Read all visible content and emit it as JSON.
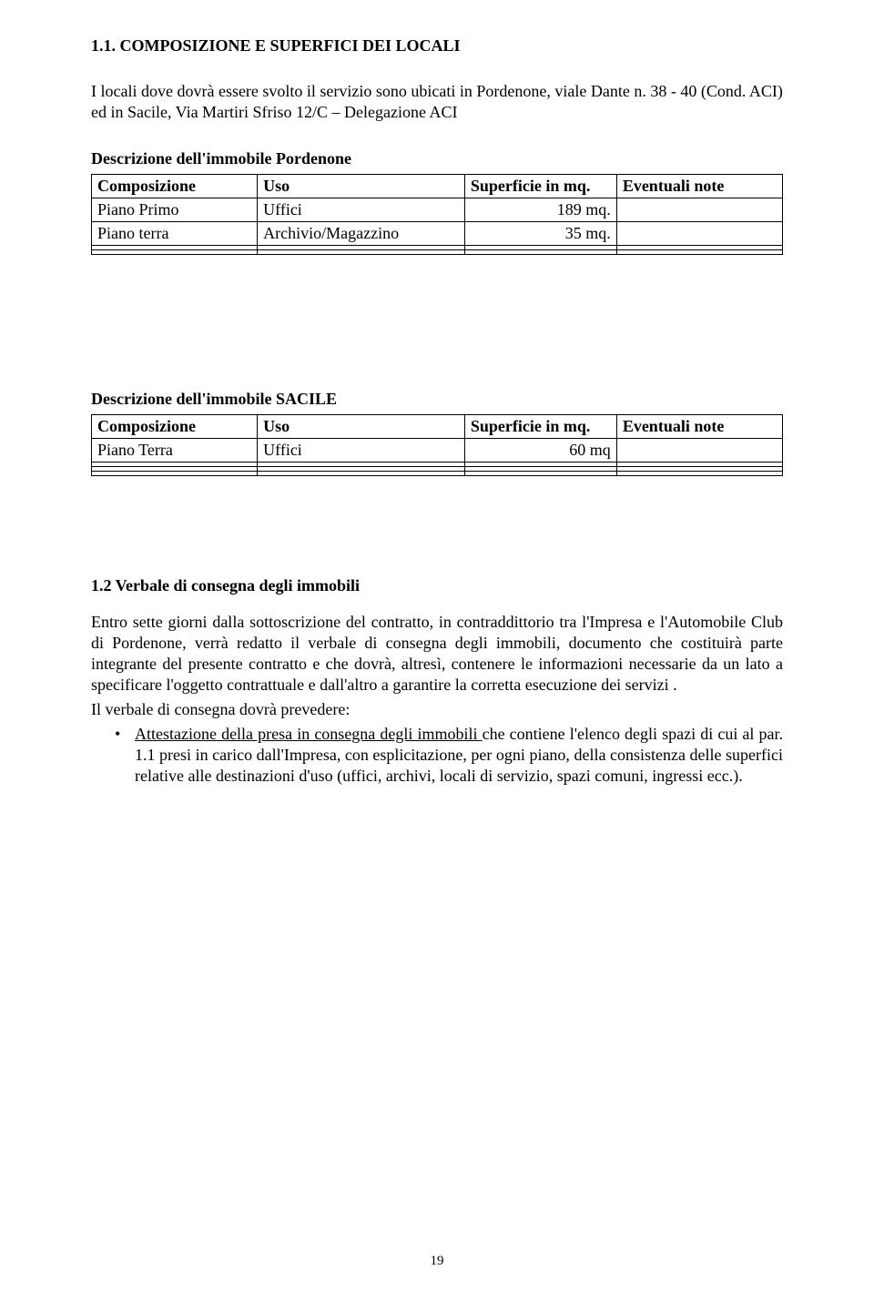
{
  "heading_1_1": "1.1. COMPOSIZIONE E SUPERFICI  DEI  LOCALI",
  "intro": "I locali dove dovrà essere svolto il servizio sono ubicati in  Pordenone, viale Dante n.  38 - 40 (Cond. ACI) ed in Sacile, Via Martiri Sfriso 12/C – Delegazione ACI",
  "table1": {
    "title": "Descrizione dell'immobile Pordenone",
    "headers": [
      "Composizione",
      "Uso",
      "Superficie  in mq.",
      "Eventuali note"
    ],
    "rows": [
      [
        "Piano Primo",
        "Uffici",
        "189 mq.",
        ""
      ],
      [
        "Piano terra",
        "Archivio/Magazzino",
        "35 mq.",
        ""
      ],
      [
        "",
        "",
        "",
        ""
      ],
      [
        "",
        "",
        "",
        ""
      ]
    ]
  },
  "table2": {
    "title": "Descrizione dell'immobile SACILE",
    "headers": [
      "Composizione",
      "Uso",
      "Superficie   in mq.",
      "Eventuali note"
    ],
    "rows": [
      [
        "Piano Terra",
        "Uffici",
        "60 mq",
        ""
      ],
      [
        "",
        "",
        "",
        ""
      ],
      [
        "",
        "",
        "",
        ""
      ],
      [
        "",
        "",
        "",
        ""
      ]
    ]
  },
  "heading_1_2": "1.2 Verbale di consegna degli immobili",
  "para1": "Entro sette giorni dalla sottoscrizione del contratto, in contraddittorio tra l'Impresa  e l'Automobile Club di Pordenone, verrà redatto il verbale di consegna degli immobili, documento che costituirà parte integrante del presente contratto e che dovrà, altresì, contenere le informazioni necessarie da un lato a specificare l'oggetto contrattuale e dall'altro a garantire la corretta esecuzione dei servizi .",
  "para2": "Il verbale di consegna dovrà prevedere:",
  "bullet1_underlined": "Attestazione della presa in consegna degli immobili ",
  "bullet1_rest": "che contiene l'elenco degli spazi di cui al par. 1.1 presi in carico dall'Impresa, con esplicitazione, per ogni piano, della consistenza delle superfici relative alle destinazioni d'uso (uffici, archivi, locali di servizio, spazi comuni, ingressi ecc.).",
  "page_number": "19"
}
